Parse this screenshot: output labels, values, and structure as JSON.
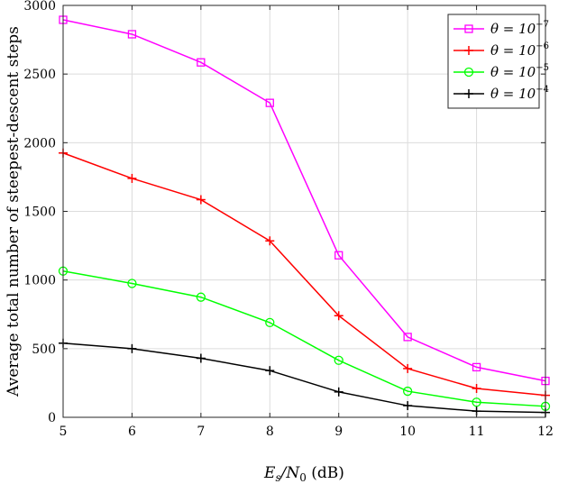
{
  "chart_data": {
    "type": "line",
    "title": "",
    "xlabel": "E_s/N_0 (dB)",
    "xlabel_parts": {
      "main": "E",
      "main_sub": "s",
      "slash": "/N",
      "slash_sub": "0",
      "unit": " (dB)"
    },
    "ylabel": "Average total number of steepest-descent steps",
    "xlim": [
      5,
      12
    ],
    "ylim": [
      0,
      3000
    ],
    "x_ticks": [
      5,
      6,
      7,
      8,
      9,
      10,
      11,
      12
    ],
    "y_ticks": [
      0,
      500,
      1000,
      1500,
      2000,
      2500,
      3000
    ],
    "grid": true,
    "legend_position": "top-right",
    "x": [
      5,
      6,
      7,
      8,
      9,
      10,
      11,
      12
    ],
    "series": [
      {
        "name": "θ = 10^-7",
        "legend_base": "θ = 10",
        "legend_exp": "−7",
        "color": "#ff00ff",
        "marker": "square",
        "values": [
          2895,
          2790,
          2585,
          2290,
          1180,
          585,
          365,
          265
        ]
      },
      {
        "name": "θ = 10^-6",
        "legend_base": "θ = 10",
        "legend_exp": "−6",
        "color": "#ff0000",
        "marker": "plus",
        "values": [
          1925,
          1740,
          1585,
          1285,
          740,
          355,
          210,
          160
        ]
      },
      {
        "name": "θ = 10^-5",
        "legend_base": "θ = 10",
        "legend_exp": "−5",
        "color": "#00ff00",
        "marker": "circle",
        "values": [
          1065,
          975,
          875,
          690,
          415,
          190,
          110,
          80
        ]
      },
      {
        "name": "θ = 10^-4",
        "legend_base": "θ = 10",
        "legend_exp": "−4",
        "color": "#000000",
        "marker": "plus",
        "values": [
          540,
          500,
          430,
          340,
          185,
          85,
          45,
          35
        ]
      }
    ]
  }
}
